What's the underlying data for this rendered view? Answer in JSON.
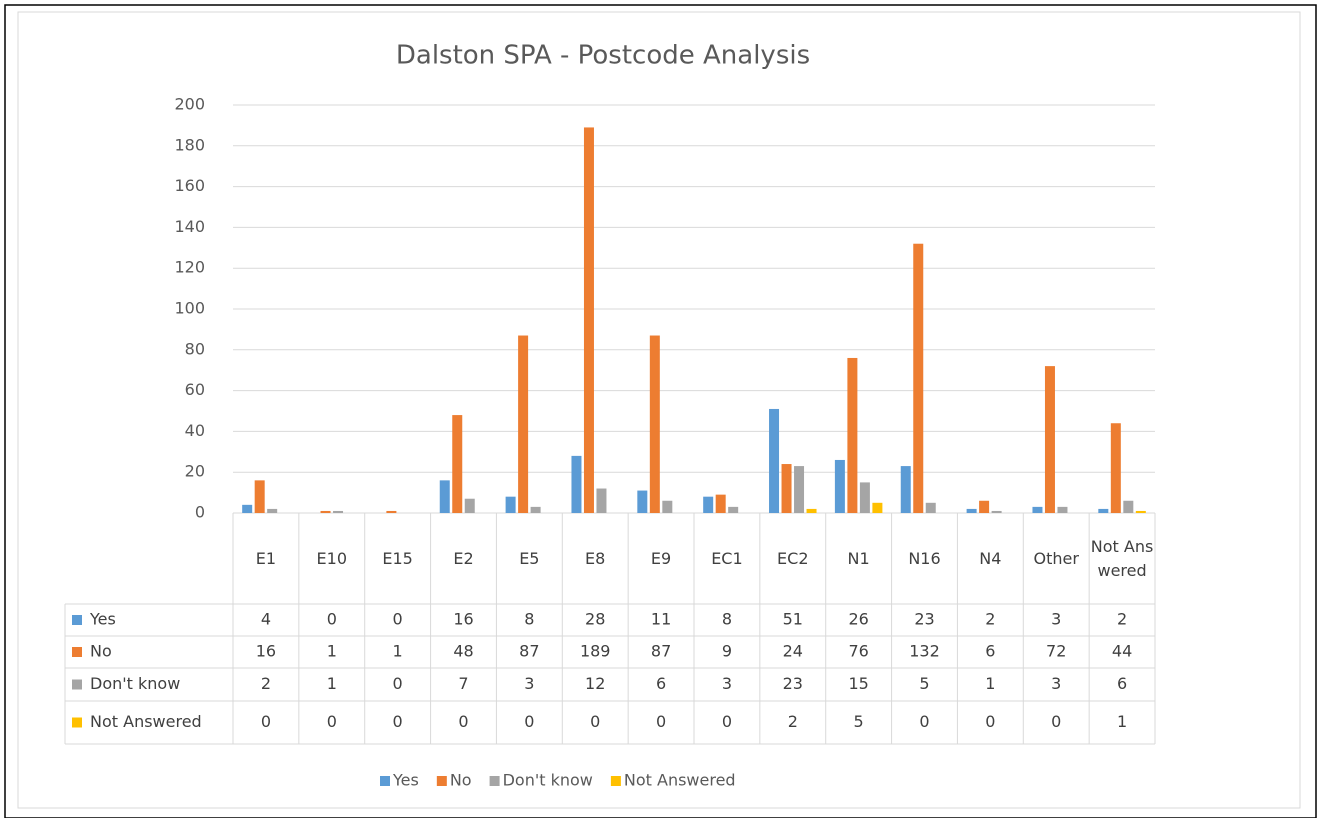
{
  "chart_data": {
    "type": "bar",
    "title": "Dalston SPA - Postcode Analysis",
    "categories": [
      "E1",
      "E10",
      "E15",
      "E2",
      "E5",
      "E8",
      "E9",
      "EC1",
      "EC2",
      "N1",
      "N16",
      "N4",
      "Other",
      "Not Answered"
    ],
    "series": [
      {
        "name": "Yes",
        "color": "#5b9bd5",
        "values": [
          4,
          0,
          0,
          16,
          8,
          28,
          11,
          8,
          51,
          26,
          23,
          2,
          3,
          2
        ]
      },
      {
        "name": "No",
        "color": "#ed7d31",
        "values": [
          16,
          1,
          1,
          48,
          87,
          189,
          87,
          9,
          24,
          76,
          132,
          6,
          72,
          44
        ]
      },
      {
        "name": "Don't know",
        "color": "#a5a5a5",
        "values": [
          2,
          1,
          0,
          7,
          3,
          12,
          6,
          3,
          23,
          15,
          5,
          1,
          3,
          6
        ]
      },
      {
        "name": "Not Answered",
        "color": "#ffc000",
        "values": [
          0,
          0,
          0,
          0,
          0,
          0,
          0,
          0,
          2,
          5,
          0,
          0,
          0,
          1
        ]
      }
    ],
    "ylim": [
      0,
      200
    ],
    "yticks": [
      0,
      20,
      40,
      60,
      80,
      100,
      120,
      140,
      160,
      180,
      200
    ],
    "grid": true,
    "legend": "bottom"
  }
}
